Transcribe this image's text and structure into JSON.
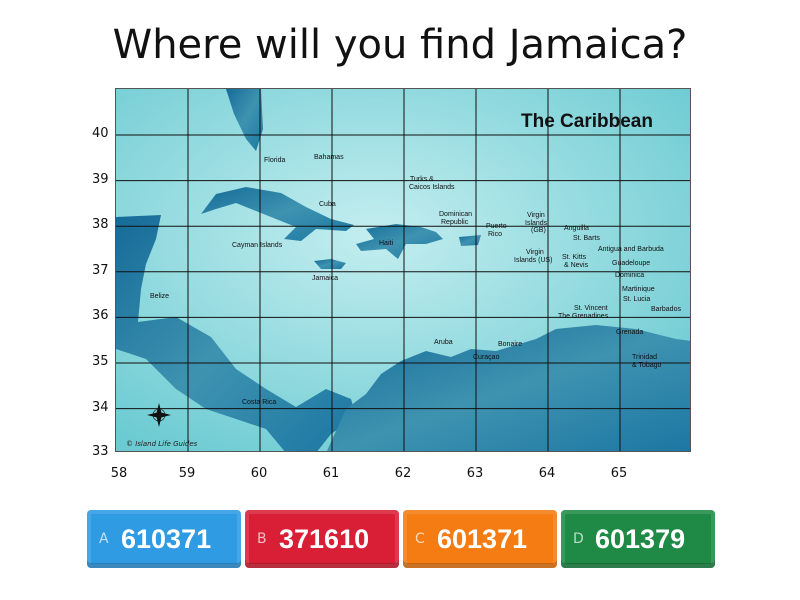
{
  "question": "Where will you find Jamaica?",
  "map": {
    "title": "The Caribbean",
    "credit": "© Island Life Guides",
    "compass": [
      "N",
      "E",
      "S",
      "W"
    ],
    "labels": [
      "Florida",
      "Bahamas",
      "Turks &",
      "Caicos Islands",
      "Cuba",
      "Dominican",
      "Republic",
      "Puerto",
      "Rico",
      "Virgin",
      "Islands",
      "(GB)",
      "Anguilla",
      "St. Barts",
      "Cayman Islands",
      "Haiti",
      "Antigua and Barbuda",
      "Virgin",
      "Islands (US)",
      "St. Kitts",
      "& Nevis",
      "Guadeloupe",
      "Jamaica",
      "Dominica",
      "Martinique",
      "St. Lucia",
      "Belize",
      "Barbados",
      "St. Vincent",
      "The Grenadines",
      "Grenada",
      "Aruba",
      "Bonaire",
      "Curaçao",
      "Trinidad",
      "& Tobago",
      "Costa Rica"
    ],
    "colors": {
      "sea": "#8fd8dc",
      "land": "#1f7ea8",
      "grid": "#111111"
    }
  },
  "y_axis": [
    "40",
    "39",
    "38",
    "37",
    "36",
    "35",
    "34",
    "33"
  ],
  "x_axis": [
    "58",
    "59",
    "60",
    "61",
    "62",
    "63",
    "64",
    "65"
  ],
  "answers": [
    {
      "letter": "A",
      "value": "610371",
      "color": "#2e9be3"
    },
    {
      "letter": "B",
      "value": "371610",
      "color": "#d91f35"
    },
    {
      "letter": "C",
      "value": "601371",
      "color": "#f57c12"
    },
    {
      "letter": "D",
      "value": "601379",
      "color": "#1e8a45"
    }
  ]
}
